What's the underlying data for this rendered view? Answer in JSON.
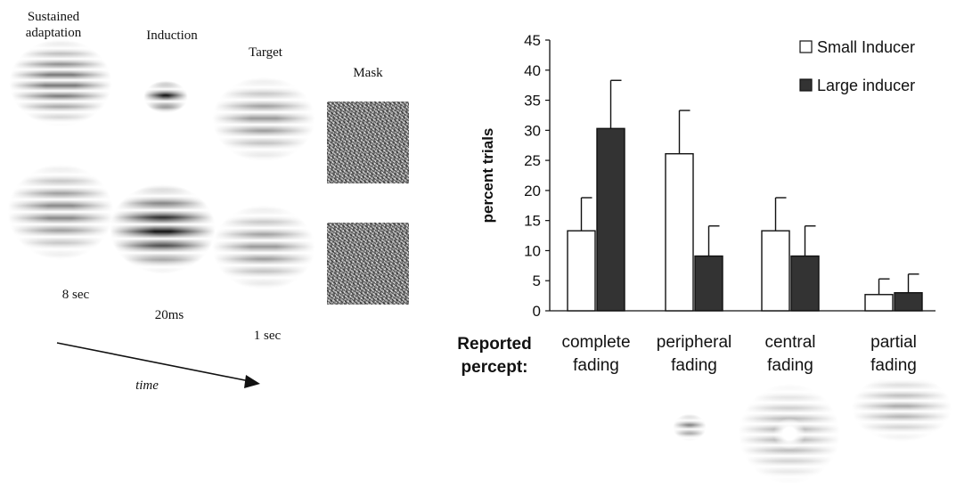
{
  "diagram": {
    "stage_labels": {
      "adaptation": [
        "Sustained",
        "adaptation"
      ],
      "induction": "Induction",
      "target": "Target",
      "mask": "Mask"
    },
    "durations": {
      "adaptation": "8 sec",
      "induction": "20ms",
      "target": "1 sec"
    },
    "time_label": "time"
  },
  "chart_data": {
    "type": "bar",
    "ylabel": "percent trials",
    "xlabel": [
      "Reported",
      "percept:"
    ],
    "categories": [
      [
        "complete",
        "fading"
      ],
      [
        "peripheral",
        "fading"
      ],
      [
        "central",
        "fading"
      ],
      [
        "partial",
        "fading"
      ]
    ],
    "ylim": [
      0,
      45
    ],
    "yticks": [
      0,
      5,
      10,
      15,
      20,
      25,
      30,
      35,
      40,
      45
    ],
    "legend_position": "top-right",
    "series": [
      {
        "name": "Small Inducer",
        "color": "#ffffff",
        "values": [
          13.3,
          26.1,
          13.3,
          2.7
        ],
        "errors": [
          5.5,
          7.2,
          5.5,
          2.6
        ]
      },
      {
        "name": "Large inducer",
        "color": "#333333",
        "values": [
          30.3,
          9.1,
          9.1,
          3.0
        ],
        "errors": [
          8.0,
          5.0,
          5.0,
          3.1
        ]
      }
    ]
  }
}
